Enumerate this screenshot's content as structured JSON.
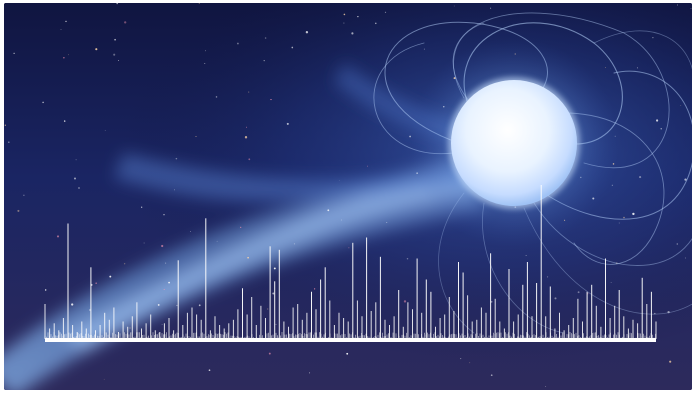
{
  "scene": {
    "subject": "magnetar-star-illustration",
    "colors": {
      "space_dark": "#0d1236",
      "space_mid": "#1c2a6b",
      "space_bottom": "#3a2f5f",
      "nebula": "#6fa6e8",
      "star_core": "#f1f7ff",
      "star_glow": "#9fcaff",
      "field_lines": "#bcd8ff",
      "spikes": "#ffffff"
    }
  },
  "spikes": {
    "max_value": 100,
    "heights": [
      20,
      6,
      9,
      5,
      12,
      66,
      8,
      4,
      10,
      6,
      41,
      5,
      8,
      15,
      11,
      18,
      4,
      10,
      7,
      13,
      21,
      6,
      9,
      14,
      5,
      4,
      9,
      12,
      5,
      45,
      8,
      15,
      18,
      14,
      11,
      69,
      5,
      13,
      8,
      6,
      9,
      11,
      17,
      29,
      14,
      24,
      8,
      19,
      12,
      53,
      33,
      51,
      10,
      7,
      18,
      20,
      11,
      15,
      27,
      17,
      34,
      41,
      22,
      8,
      15,
      12,
      10,
      55,
      22,
      13,
      58,
      16,
      21,
      47,
      11,
      8,
      13,
      28,
      7,
      21,
      17,
      46,
      15,
      34,
      27,
      7,
      12,
      14,
      24,
      16,
      44,
      38,
      25,
      10,
      11,
      18,
      15,
      49,
      23,
      10,
      6,
      40,
      10,
      14,
      31,
      44,
      13,
      32,
      88,
      13,
      30,
      6,
      15,
      5,
      8,
      12,
      23,
      10,
      27,
      31,
      19,
      7,
      46,
      12,
      19,
      28,
      13,
      6,
      11,
      9,
      35,
      20,
      27,
      10
    ]
  }
}
